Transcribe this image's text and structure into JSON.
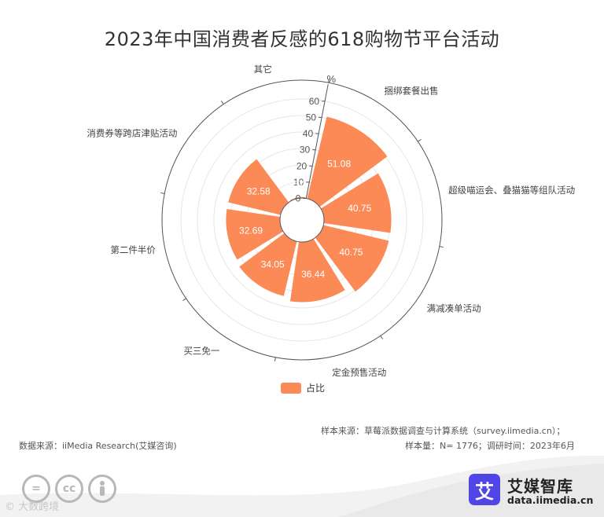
{
  "title": "2023年中国消费者反感的618购物节平台活动",
  "chart_data": {
    "type": "polar-bar",
    "unit": "%",
    "radius_axis": {
      "min": 0,
      "max": 60,
      "ticks": [
        0,
        10,
        20,
        30,
        40,
        50,
        60
      ]
    },
    "categories": [
      "捆绑套餐出售",
      "超级喵运会、叠猫猫等组队活动",
      "满减凑单活动",
      "定金预售活动",
      "买三免一",
      "第二件半价",
      "消费券等跨店津贴活动",
      "其它"
    ],
    "series": [
      {
        "name": "占比",
        "values": [
          51.08,
          40.75,
          40.75,
          36.44,
          34.05,
          32.69,
          32.58,
          0.57
        ]
      }
    ],
    "colors": {
      "bar": "#fb8a57",
      "axis": "#555555",
      "grid": "#e6e6e6"
    },
    "legend": {
      "position": "bottom-center"
    }
  },
  "footer": {
    "source_sample": "样本来源：草莓派数据调查与计算系统（survey.iimedia.cn）；",
    "sample_size": "样本量：N= 1776；调研时间：2023年6月",
    "data_source": "数据来源：iiMedia Research(艾媒咨询)"
  },
  "license_icons": [
    "=",
    "cc",
    "person-icon"
  ],
  "watermark": "© 大数跨境",
  "brand": {
    "logo_char": "艾",
    "name": "艾媒智库",
    "url": "data.iimedia.cn",
    "logo_color": "#4f46e5"
  }
}
